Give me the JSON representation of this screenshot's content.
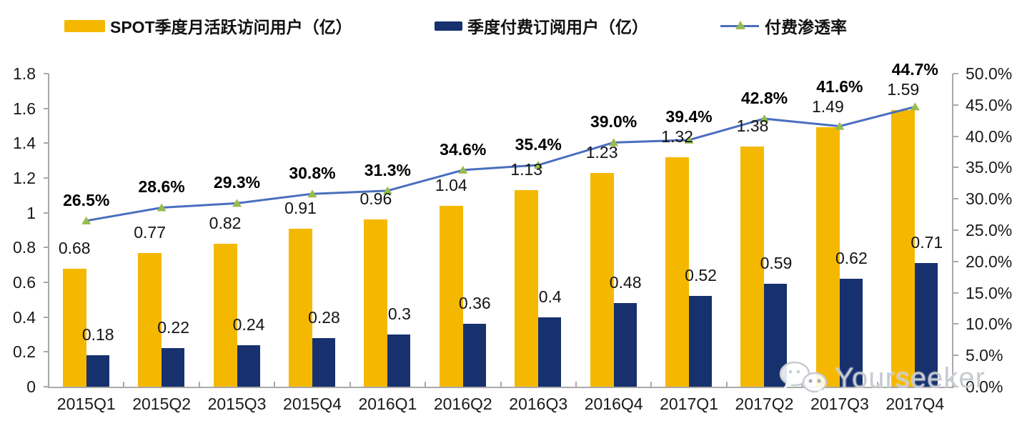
{
  "legend": {
    "items": [
      {
        "label": "SPOT季度月活跃访问用户（亿）",
        "swatch_color": "#F5B800",
        "type": "bar-swatch"
      },
      {
        "label": "季度付费订阅用户（亿）",
        "swatch_color": "#17316F",
        "type": "bar-swatch"
      },
      {
        "label": "付费渗透率",
        "line_color": "#4A6FBE",
        "marker_color": "#96BC4E",
        "type": "line-marker"
      }
    ]
  },
  "chart_data": {
    "type": "combo",
    "categories": [
      "2015Q1",
      "2015Q2",
      "2015Q3",
      "2015Q4",
      "2016Q1",
      "2016Q2",
      "2016Q3",
      "2016Q4",
      "2017Q1",
      "2017Q2",
      "2017Q3",
      "2017Q4"
    ],
    "series": [
      {
        "name": "SPOT季度月活跃访问用户（亿）",
        "type": "bar",
        "axis": "left",
        "color": "#F5B800",
        "values": [
          0.68,
          0.77,
          0.82,
          0.91,
          0.96,
          1.04,
          1.13,
          1.23,
          1.32,
          1.38,
          1.49,
          1.59
        ],
        "labels": [
          "0.68",
          "0.77",
          "0.82",
          "0.91",
          "0.96",
          "1.04",
          "1.13",
          "1.23",
          "1.32",
          "1.38",
          "1.49",
          "1.59"
        ]
      },
      {
        "name": "季度付费订阅用户（亿）",
        "type": "bar",
        "axis": "left",
        "color": "#17316F",
        "values": [
          0.18,
          0.22,
          0.24,
          0.28,
          0.3,
          0.36,
          0.4,
          0.48,
          0.52,
          0.59,
          0.62,
          0.71
        ],
        "labels": [
          "0.18",
          "0.22",
          "0.24",
          "0.28",
          "0.3",
          "0.36",
          "0.4",
          "0.48",
          "0.52",
          "0.59",
          "0.62",
          "0.71"
        ]
      },
      {
        "name": "付费渗透率",
        "type": "line",
        "axis": "right",
        "color": "#4A6FBE",
        "marker": "triangle-up",
        "marker_color": "#96BC4E",
        "values": [
          26.5,
          28.6,
          29.3,
          30.8,
          31.3,
          34.6,
          35.4,
          39.0,
          39.4,
          42.8,
          41.6,
          44.7
        ],
        "labels": [
          "26.5%",
          "28.6%",
          "29.3%",
          "30.8%",
          "31.3%",
          "34.6%",
          "35.4%",
          "39.0%",
          "39.4%",
          "42.8%",
          "41.6%",
          "44.7%"
        ]
      }
    ],
    "left_axis": {
      "min": 0,
      "max": 1.8,
      "ticks": [
        "1.8",
        "1.6",
        "1.4",
        "1.2",
        "1",
        "0.8",
        "0.6",
        "0.4",
        "0.2",
        "0"
      ]
    },
    "right_axis": {
      "min": 0,
      "max": 50,
      "ticks": [
        "50.0%",
        "45.0%",
        "40.0%",
        "35.0%",
        "30.0%",
        "25.0%",
        "20.0%",
        "15.0%",
        "10.0%",
        "5.0%",
        "0.0%"
      ]
    },
    "grid": false,
    "legend_position": "top",
    "plot_background": "#ffffff"
  },
  "watermark": {
    "text": "Yourseeker",
    "icon": "wechat-icon"
  }
}
